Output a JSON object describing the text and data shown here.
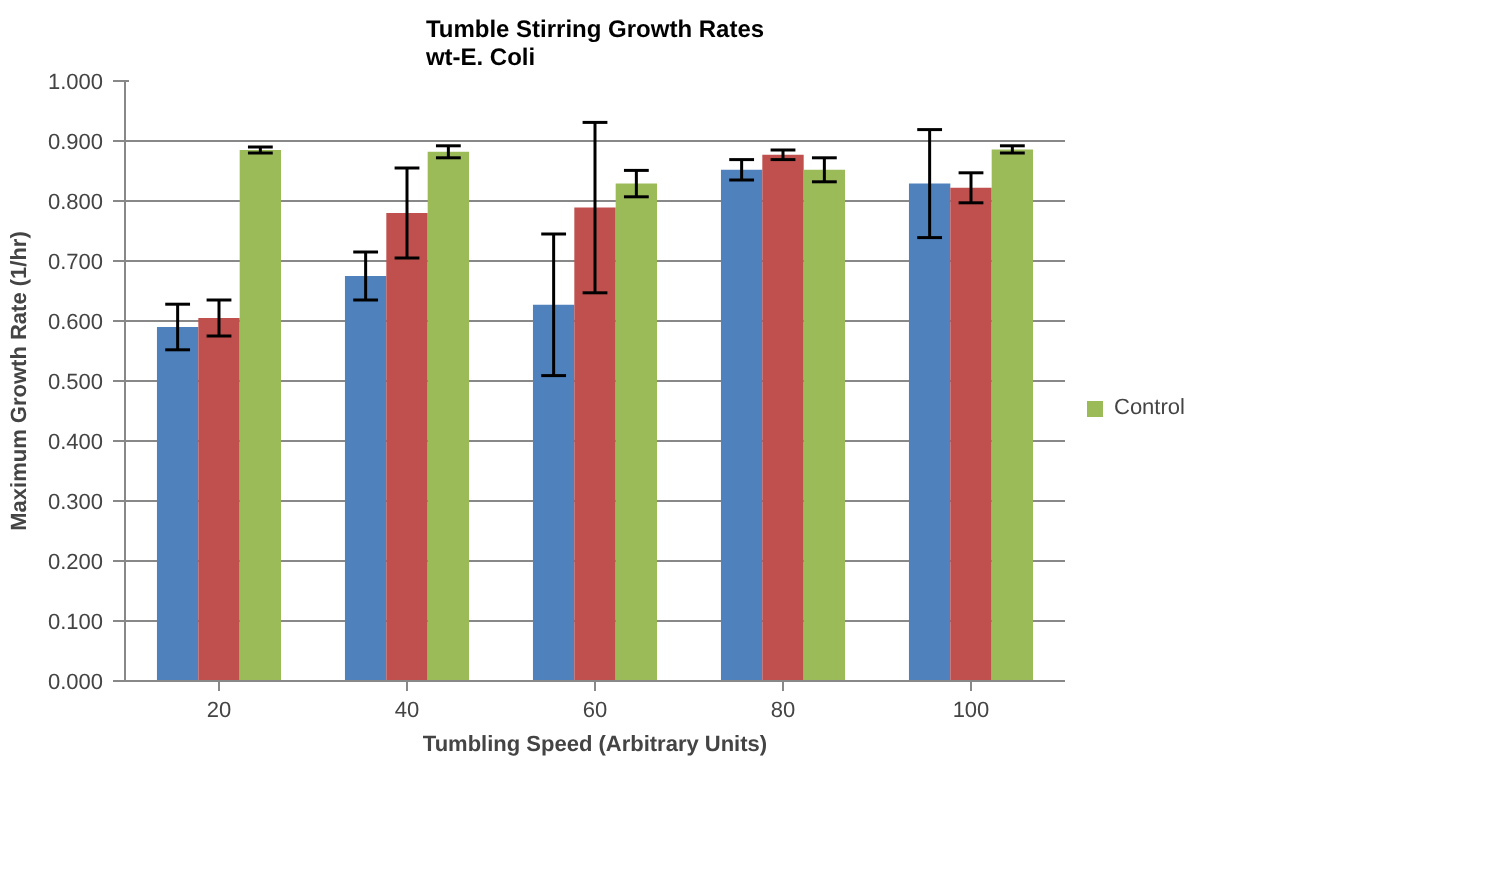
{
  "chart_data": {
    "type": "bar",
    "title": "Tumble Stirring Growth Rates\nwt-E. Coli",
    "xlabel": "Tumbling Speed (Arbitrary Units)",
    "ylabel": "Maximum Growth Rate (1/hr)",
    "categories": [
      "20",
      "40",
      "60",
      "80",
      "100"
    ],
    "series": [
      {
        "color": "#4f81bd",
        "values": [
          0.59,
          0.675,
          0.627,
          0.852,
          0.829
        ],
        "errors": [
          0.038,
          0.04,
          0.118,
          0.017,
          0.09
        ]
      },
      {
        "color": "#c0504d",
        "values": [
          0.605,
          0.78,
          0.789,
          0.877,
          0.822
        ],
        "errors": [
          0.03,
          0.075,
          0.142,
          0.008,
          0.025
        ]
      },
      {
        "name": "Control",
        "color": "#9bbb59",
        "values": [
          0.885,
          0.882,
          0.829,
          0.852,
          0.886
        ],
        "errors": [
          0.005,
          0.01,
          0.022,
          0.02,
          0.006
        ]
      }
    ],
    "ylim": [
      0,
      1
    ],
    "yticks": [
      {
        "value": 0,
        "label": "0.000"
      },
      {
        "value": 0.1,
        "label": "0.100"
      },
      {
        "value": 0.2,
        "label": "0.200"
      },
      {
        "value": 0.3,
        "label": "0.300"
      },
      {
        "value": 0.4,
        "label": "0.400"
      },
      {
        "value": 0.5,
        "label": "0.500"
      },
      {
        "value": 0.6,
        "label": "0.600"
      },
      {
        "value": 0.7,
        "label": "0.700"
      },
      {
        "value": 0.8,
        "label": "0.800"
      },
      {
        "value": 0.9,
        "label": "0.900"
      },
      {
        "value": 1,
        "label": "1.000"
      }
    ],
    "grid": "y",
    "legend": "right"
  }
}
